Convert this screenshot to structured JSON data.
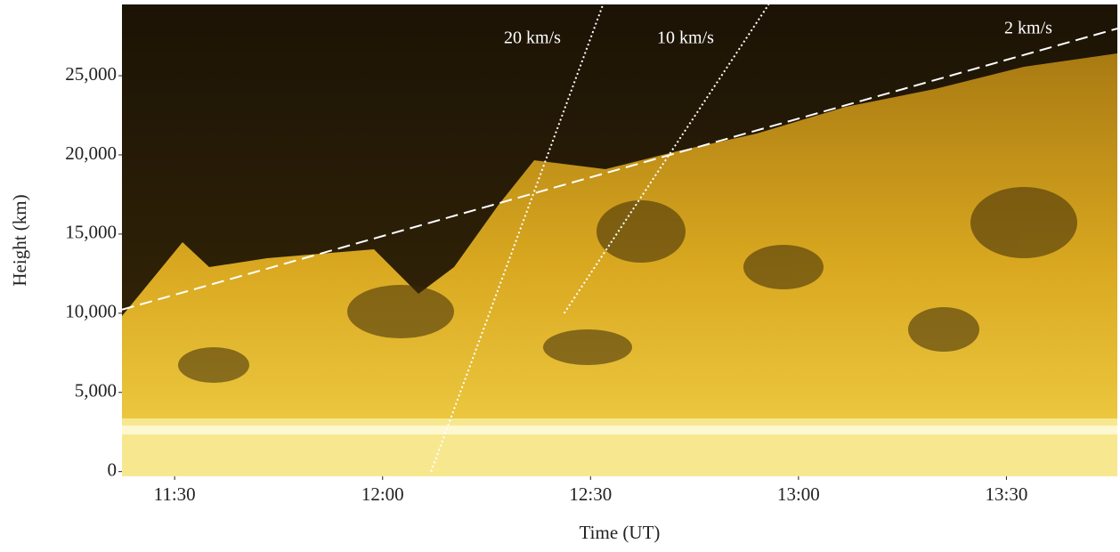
{
  "chart_data": {
    "type": "line",
    "x_label": "Time (UT)",
    "y_label": "Height (km)",
    "xlim": [
      682.4,
      826
    ],
    "ylim": [
      -300,
      29500
    ],
    "xticks": [
      {
        "value": 690,
        "label": "11:30"
      },
      {
        "value": 720,
        "label": "12:00"
      },
      {
        "value": 750,
        "label": "12:30"
      },
      {
        "value": 780,
        "label": "13:00"
      },
      {
        "value": 810,
        "label": "13:30"
      }
    ],
    "yticks": [
      0,
      {
        "value": 5000,
        "label": "5,000"
      },
      {
        "value": 10000,
        "label": "10,000"
      },
      {
        "value": 15000,
        "label": "15,000"
      },
      {
        "value": 20000,
        "label": "20,000"
      },
      {
        "value": 25000,
        "label": "25,000"
      }
    ],
    "series": [
      {
        "name": "20 km/s",
        "color": "#ffffff",
        "dash": "2 3",
        "x": [
          727,
          751.8
        ],
        "y": [
          0,
          29500
        ]
      },
      {
        "name": "10 km/s",
        "color": "#ffffff",
        "dash": "2 3",
        "x": [
          746.2,
          775.7
        ],
        "y": [
          10000,
          29500
        ]
      },
      {
        "name": "2 km/s",
        "color": "#ffffff",
        "dash": "14 7",
        "x": [
          682.4,
          826
        ],
        "y": [
          10225,
          27978
        ]
      }
    ]
  }
}
